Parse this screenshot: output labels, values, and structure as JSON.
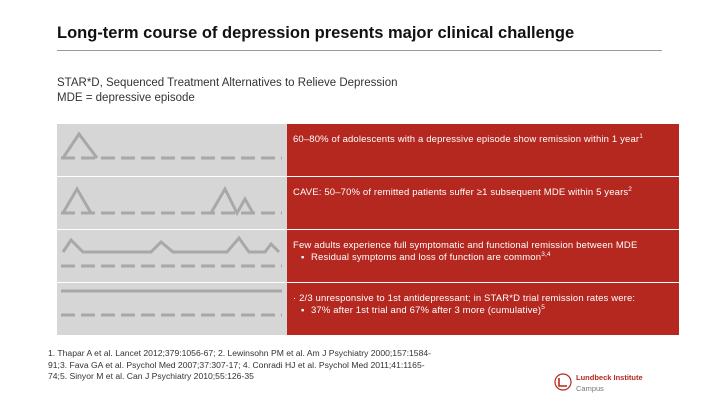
{
  "slide": {
    "title": "Long-term course of depression presents major clinical challenge",
    "subtitle_lines": [
      "STAR*D, Sequenced Treatment Alternatives to Relieve Depression",
      "MDE = depressive episode"
    ]
  },
  "rows": [
    {
      "text": "60–80% of adolescents with a depressive episode show remission within 1 year",
      "sup": "1",
      "bullet": null,
      "bullet_sup": null
    },
    {
      "text": "CAVE: 50–70% of remitted patients suffer ≥1 subsequent MDE within 5 years",
      "sup": "2",
      "bullet": null,
      "bullet_sup": null
    },
    {
      "text": "Few adults experience full symptomatic and functional remission between MDE",
      "sup": null,
      "bullet": "Residual symptoms and loss of function are common",
      "bullet_sup": "3,4"
    },
    {
      "text": "· 2/3 unresponsive to 1st antidepressant; in STAR*D trial remission rates were:",
      "sup": null,
      "bullet": "37% after 1st trial and 67% after 3 more (cumulative)",
      "bullet_sup": "5"
    }
  ],
  "references": {
    "lines": [
      "1. Thapar A et al. Lancet 2012;379:1056-67;  2. Lewinsohn PM et al. Am J Psychiatry 2000;157:1584-",
      "91;3. Fava GA et al. Psychol Med 2007;37:307-17; 4. Conradi HJ et al. Psychol Med 2011;41:1165-",
      "74;5. Sinyor M et al. Can J Psychiatry 2010;55:126-35"
    ]
  },
  "logo": {
    "name": "Lundbeck Institute",
    "subtitle": "Campus"
  },
  "colors": {
    "accent_red": "#b42820",
    "diagram_bg": "#d6d6d6",
    "diagram_line": "#a8a8a8"
  }
}
